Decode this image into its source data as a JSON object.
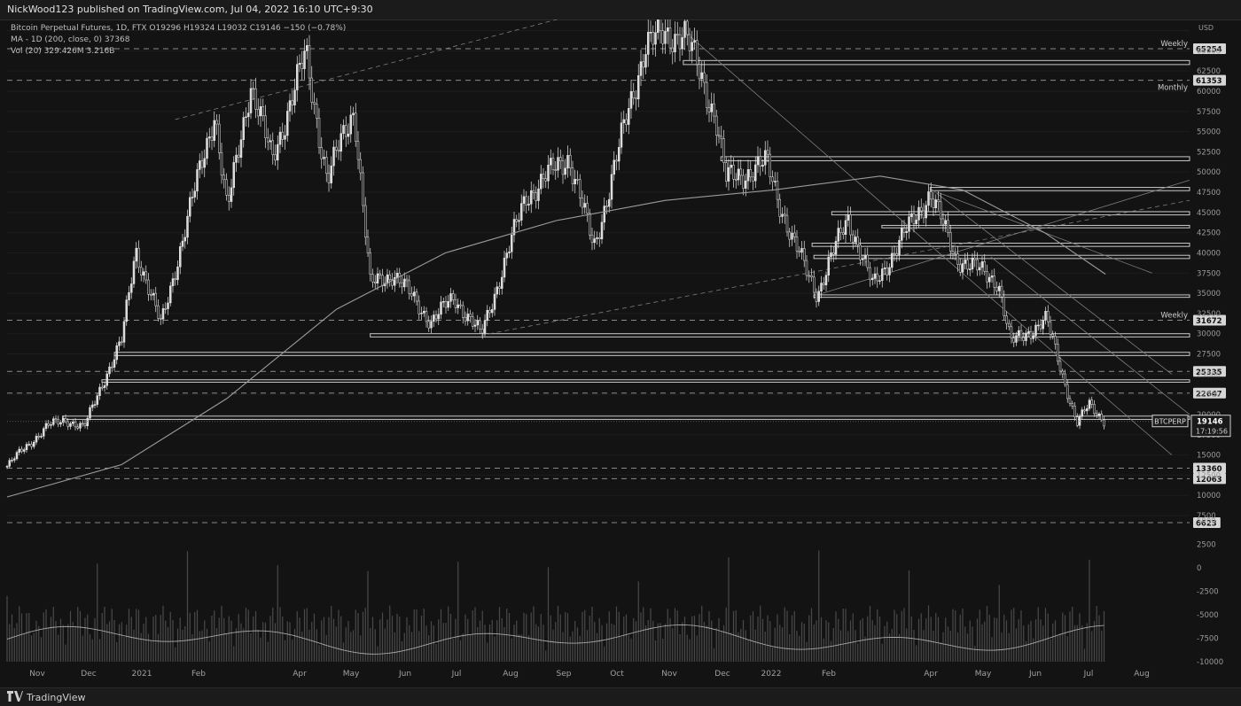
{
  "header": {
    "publish_line": "NickWood123 published on TradingView.com, Jul 04, 2022 16:10 UTC+9:30"
  },
  "legend": {
    "title_line": "Bitcoin Perpetual Futures, 1D, FTX  O19296  H19324  L19032  C19146  −150 (−0.78%)",
    "ma_line": "MA - 1D (200, close, 0)  37368",
    "vol_line": "Vol (20)  329.426M  3.216B"
  },
  "footer": {
    "brand": "TradingView"
  },
  "chart_data": {
    "type": "candlestick",
    "symbol": "BTCPERP",
    "currency_label": "USD",
    "last_price": "19146",
    "countdown": "17:19:56",
    "price_axis": {
      "ylim": [
        7500,
        68000
      ],
      "ticks": [
        "67500",
        "65000",
        "62500",
        "60000",
        "57500",
        "55000",
        "52500",
        "50000",
        "47500",
        "45000",
        "42500",
        "40000",
        "37500",
        "35000",
        "32500",
        "30000",
        "27500",
        "25000",
        "22500",
        "20000",
        "17500",
        "15000",
        "12500",
        "10000",
        "7500"
      ]
    },
    "volume_axis": {
      "ticks": [
        "5000",
        "2500",
        "0",
        "-2500",
        "-5000",
        "-7500",
        "-10000"
      ]
    },
    "time_axis": {
      "labels": [
        "Nov",
        "Dec",
        "2021",
        "Feb",
        "Apr",
        "May",
        "Jun",
        "Jul",
        "Aug",
        "Sep",
        "Oct",
        "Nov",
        "Dec",
        "2022",
        "Feb",
        "Apr",
        "May",
        "Jun",
        "Jul",
        "Aug"
      ]
    },
    "close_path": [
      [
        "2020-10-28",
        13600
      ],
      [
        "2020-11-05",
        15500
      ],
      [
        "2020-11-20",
        18600
      ],
      [
        "2020-11-30",
        19400
      ],
      [
        "2020-12-10",
        18300
      ],
      [
        "2020-12-20",
        23800
      ],
      [
        "2020-12-31",
        29000
      ],
      [
        "2021-01-08",
        40500
      ],
      [
        "2021-01-22",
        31000
      ],
      [
        "2021-02-08",
        46000
      ],
      [
        "2021-02-21",
        57500
      ],
      [
        "2021-02-28",
        45000
      ],
      [
        "2021-03-13",
        61000
      ],
      [
        "2021-03-25",
        51500
      ],
      [
        "2021-04-13",
        64500
      ],
      [
        "2021-04-25",
        49000
      ],
      [
        "2021-05-10",
        58000
      ],
      [
        "2021-05-19",
        36000
      ],
      [
        "2021-06-01",
        37500
      ],
      [
        "2021-06-22",
        31500
      ],
      [
        "2021-07-05",
        34500
      ],
      [
        "2021-07-20",
        29800
      ],
      [
        "2021-08-14",
        47000
      ],
      [
        "2021-09-07",
        52000
      ],
      [
        "2021-09-21",
        40500
      ],
      [
        "2021-10-20",
        66000
      ],
      [
        "2021-11-10",
        67500
      ],
      [
        "2021-11-28",
        57000
      ],
      [
        "2021-12-04",
        49000
      ],
      [
        "2021-12-27",
        51000
      ],
      [
        "2022-01-10",
        41500
      ],
      [
        "2022-01-24",
        35000
      ],
      [
        "2022-02-10",
        44500
      ],
      [
        "2022-02-24",
        35800
      ],
      [
        "2022-03-28",
        47500
      ],
      [
        "2022-04-11",
        39500
      ],
      [
        "2022-05-05",
        36500
      ],
      [
        "2022-05-12",
        28800
      ],
      [
        "2022-06-01",
        31700
      ],
      [
        "2022-06-18",
        18900
      ],
      [
        "2022-06-25",
        21200
      ],
      [
        "2022-07-04",
        19146
      ]
    ],
    "ma200_path": [
      [
        "2020-10-28",
        9800
      ],
      [
        "2020-12-31",
        13800
      ],
      [
        "2021-02-28",
        22000
      ],
      [
        "2021-04-30",
        33000
      ],
      [
        "2021-06-30",
        40000
      ],
      [
        "2021-08-31",
        44000
      ],
      [
        "2021-10-31",
        46500
      ],
      [
        "2021-12-31",
        47800
      ],
      [
        "2022-02-28",
        49500
      ],
      [
        "2022-04-15",
        47800
      ],
      [
        "2022-05-31",
        42500
      ],
      [
        "2022-07-04",
        37368
      ]
    ],
    "levels_dashed": [
      {
        "value": 65254,
        "label": "65254",
        "note": "Weekly"
      },
      {
        "value": 61353,
        "label": "61353",
        "note": "Monthly"
      },
      {
        "value": 31672,
        "label": "31672",
        "note": "Weekly"
      },
      {
        "value": 25335,
        "label": "25335"
      },
      {
        "value": 22647,
        "label": "22647"
      },
      {
        "value": 13360,
        "label": "13360"
      },
      {
        "value": 12063,
        "label": "12063"
      },
      {
        "value": 6623,
        "label": "6623"
      }
    ],
    "zones": [
      {
        "start": "2021-11-10",
        "low": 63300,
        "high": 63800
      },
      {
        "start": "2021-12-01",
        "low": 51400,
        "high": 51900
      },
      {
        "start": "2022-03-28",
        "low": 47700,
        "high": 48100
      },
      {
        "start": "2022-02-01",
        "low": 44700,
        "high": 45100
      },
      {
        "start": "2022-03-01",
        "low": 43100,
        "high": 43400
      },
      {
        "start": "2022-01-21",
        "low": 40800,
        "high": 41200
      },
      {
        "start": "2022-01-22",
        "low": 39300,
        "high": 39700
      },
      {
        "start": "2022-01-22",
        "low": 34500,
        "high": 34800
      },
      {
        "start": "2021-05-19",
        "low": 29600,
        "high": 30000
      },
      {
        "start": "2020-12-27",
        "low": 27300,
        "high": 27700
      },
      {
        "start": "2020-12-20",
        "low": 24000,
        "high": 24300
      },
      {
        "start": "2020-11-28",
        "low": 19400,
        "high": 19800
      }
    ],
    "volume_note": "Vol (20) 329.426M 3.216B"
  }
}
